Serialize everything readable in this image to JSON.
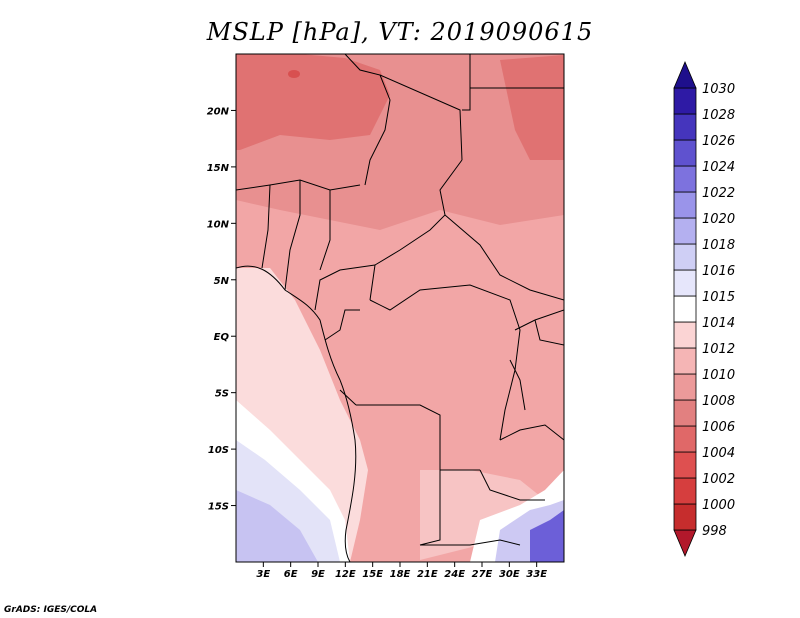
{
  "title": "MSLP [hPa], VT: 2019090615",
  "credit": "GrADS: IGES/COLA",
  "map": {
    "lon_range": [
      0,
      36
    ],
    "lat_range": [
      -20,
      25
    ],
    "lon_ticks": [
      "3E",
      "6E",
      "9E",
      "12E",
      "15E",
      "18E",
      "21E",
      "24E",
      "27E",
      "30E",
      "33E"
    ],
    "lat_ticks": [
      "20N",
      "15N",
      "10N",
      "5N",
      "EQ",
      "5S",
      "10S",
      "15S"
    ]
  },
  "colorbar": {
    "levels": [
      "998",
      "1000",
      "1002",
      "1004",
      "1006",
      "1008",
      "1010",
      "1012",
      "1014",
      "1015",
      "1016",
      "1018",
      "1020",
      "1022",
      "1024",
      "1026",
      "1028",
      "1030"
    ],
    "colors": [
      "#b2182b",
      "#c62d2d",
      "#d63e3e",
      "#de5050",
      "#e06868",
      "#e28080",
      "#ec9a9a",
      "#f5b5b5",
      "#fbd4d4",
      "#ffffff",
      "#e6e6fb",
      "#cfcff5",
      "#b4b0f0",
      "#9a94ea",
      "#7d72de",
      "#5f52cf",
      "#4535bd",
      "#2e1aa5",
      "#1e0f8c"
    ]
  }
}
